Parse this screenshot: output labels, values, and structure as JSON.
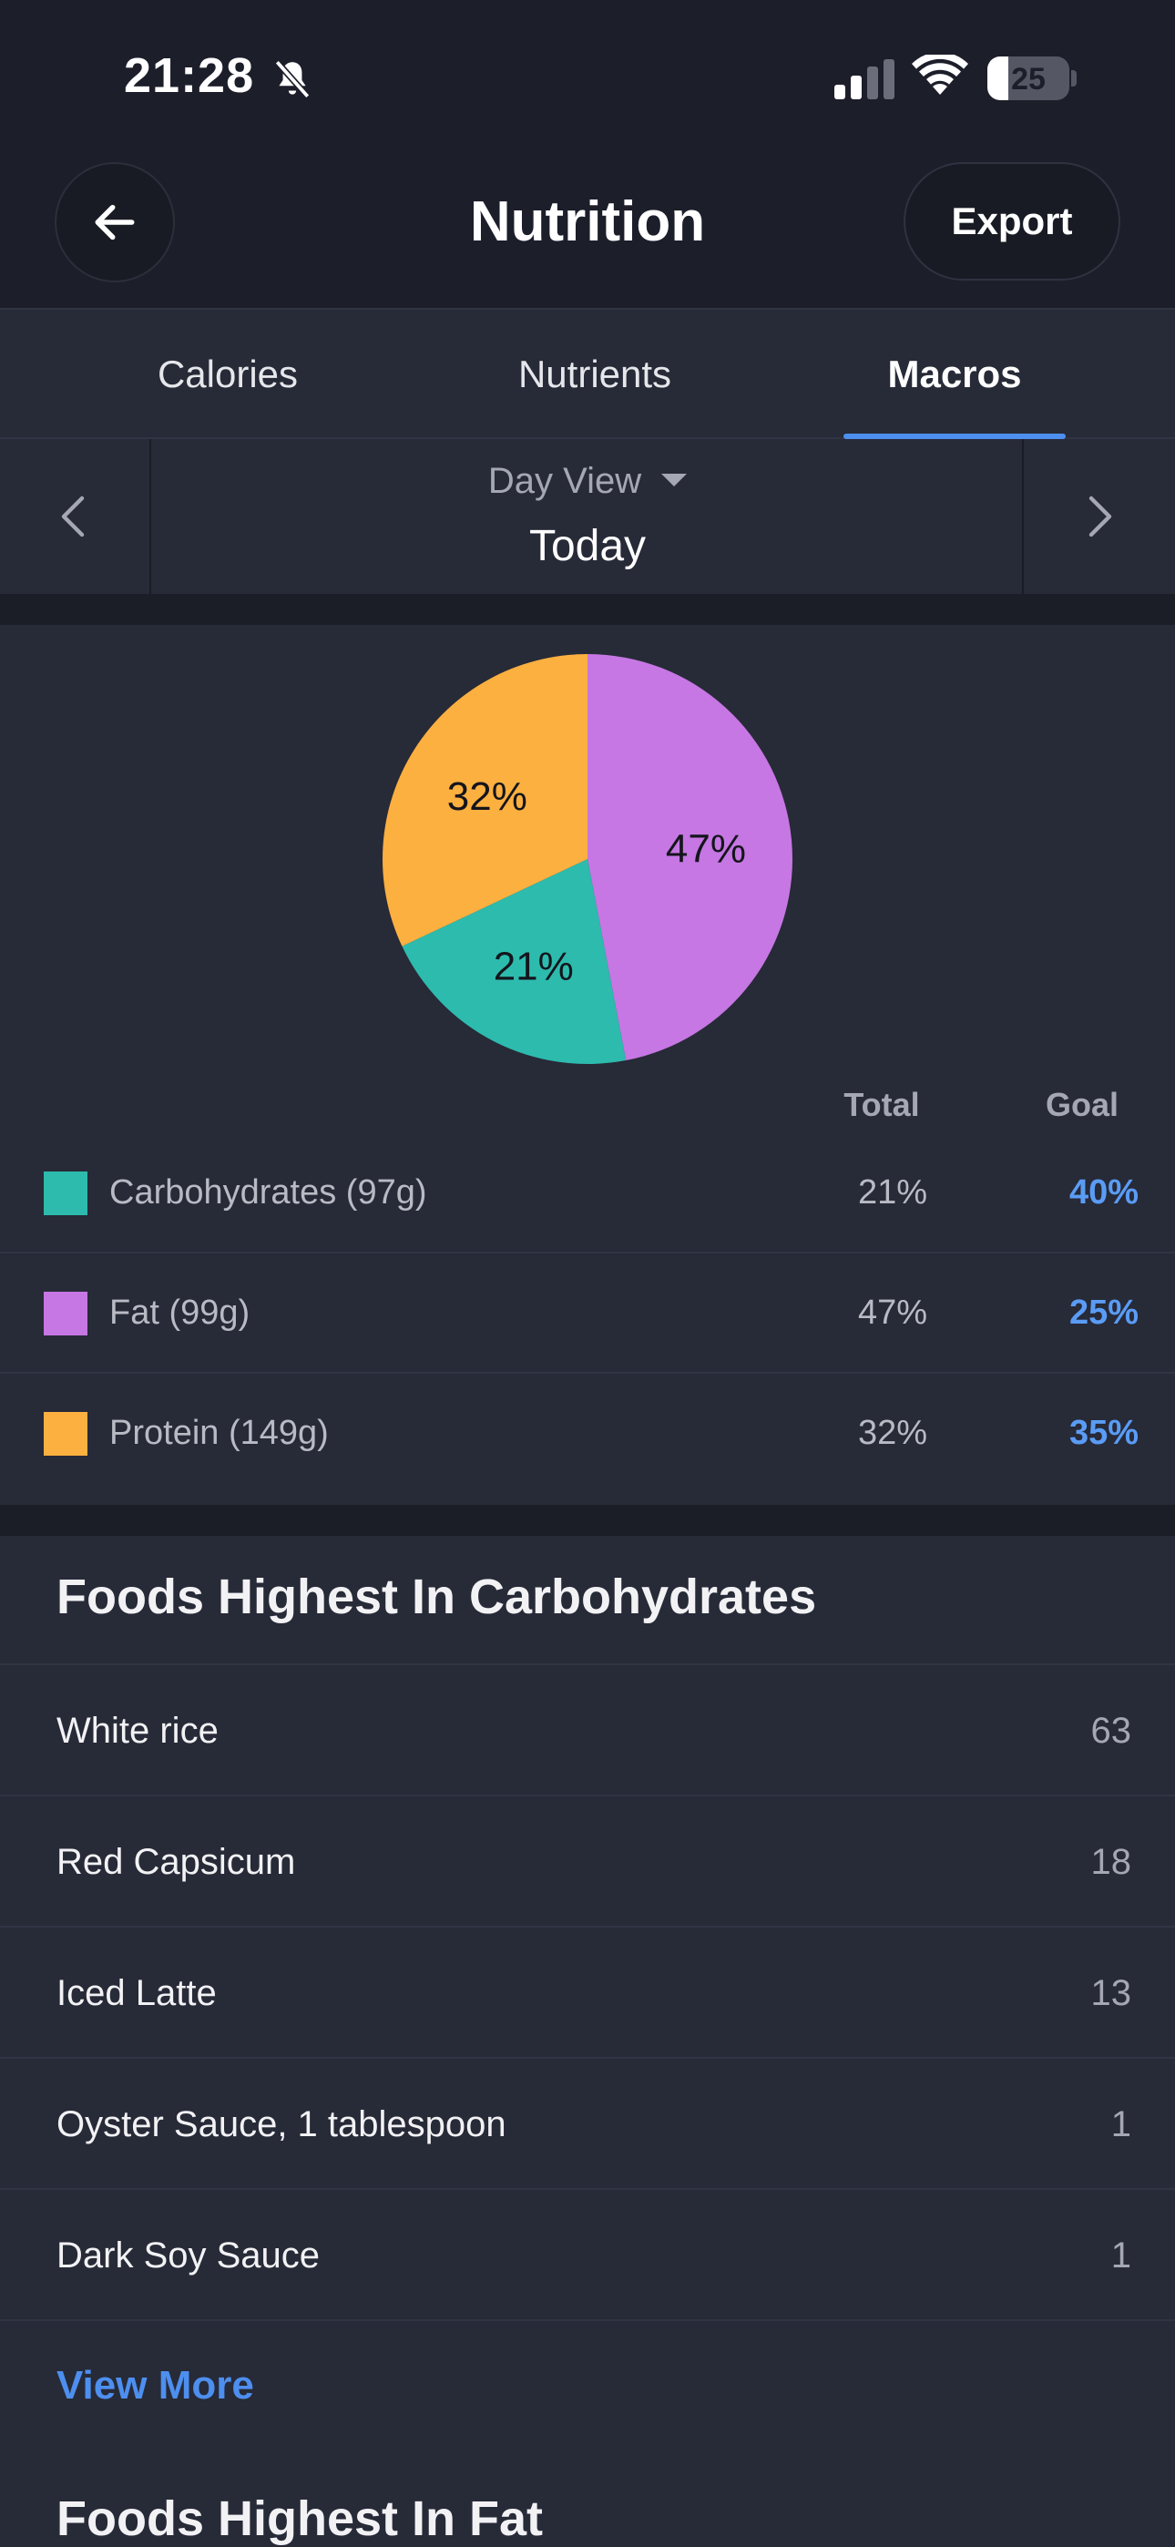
{
  "status_bar": {
    "time": "21:28",
    "battery": "25"
  },
  "header": {
    "title": "Nutrition",
    "export_label": "Export"
  },
  "tabs": [
    {
      "label": "Calories",
      "active": false
    },
    {
      "label": "Nutrients",
      "active": false
    },
    {
      "label": "Macros",
      "active": true
    }
  ],
  "date_selector": {
    "view_mode": "Day View",
    "date": "Today"
  },
  "colors": {
    "carbohydrates": "#2dbbae",
    "fat": "#c677e3",
    "protein": "#fcb040",
    "accent": "#4d8fef"
  },
  "chart_data": {
    "type": "pie",
    "slices": [
      {
        "label": "Carbohydrates",
        "value": 21,
        "display": "21%"
      },
      {
        "label": "Fat",
        "value": 47,
        "display": "47%"
      },
      {
        "label": "Protein",
        "value": 32,
        "display": "32%"
      }
    ],
    "legend_headers": {
      "total": "Total",
      "goal": "Goal"
    }
  },
  "macros": [
    {
      "label": "Carbohydrates (97g)",
      "total": "21%",
      "goal": "40%"
    },
    {
      "label": "Fat (99g)",
      "total": "47%",
      "goal": "25%"
    },
    {
      "label": "Protein (149g)",
      "total": "32%",
      "goal": "35%"
    }
  ],
  "foods_carbs": {
    "title": "Foods Highest In Carbohydrates",
    "items": [
      {
        "name": "White rice",
        "value": "63"
      },
      {
        "name": "Red Capsicum",
        "value": "18"
      },
      {
        "name": "Iced Latte",
        "value": "13"
      },
      {
        "name": "Oyster Sauce, 1 tablespoon",
        "value": "1"
      },
      {
        "name": "Dark Soy Sauce",
        "value": "1"
      }
    ],
    "view_more": "View More"
  },
  "foods_fat": {
    "title": "Foods Highest In Fat"
  }
}
